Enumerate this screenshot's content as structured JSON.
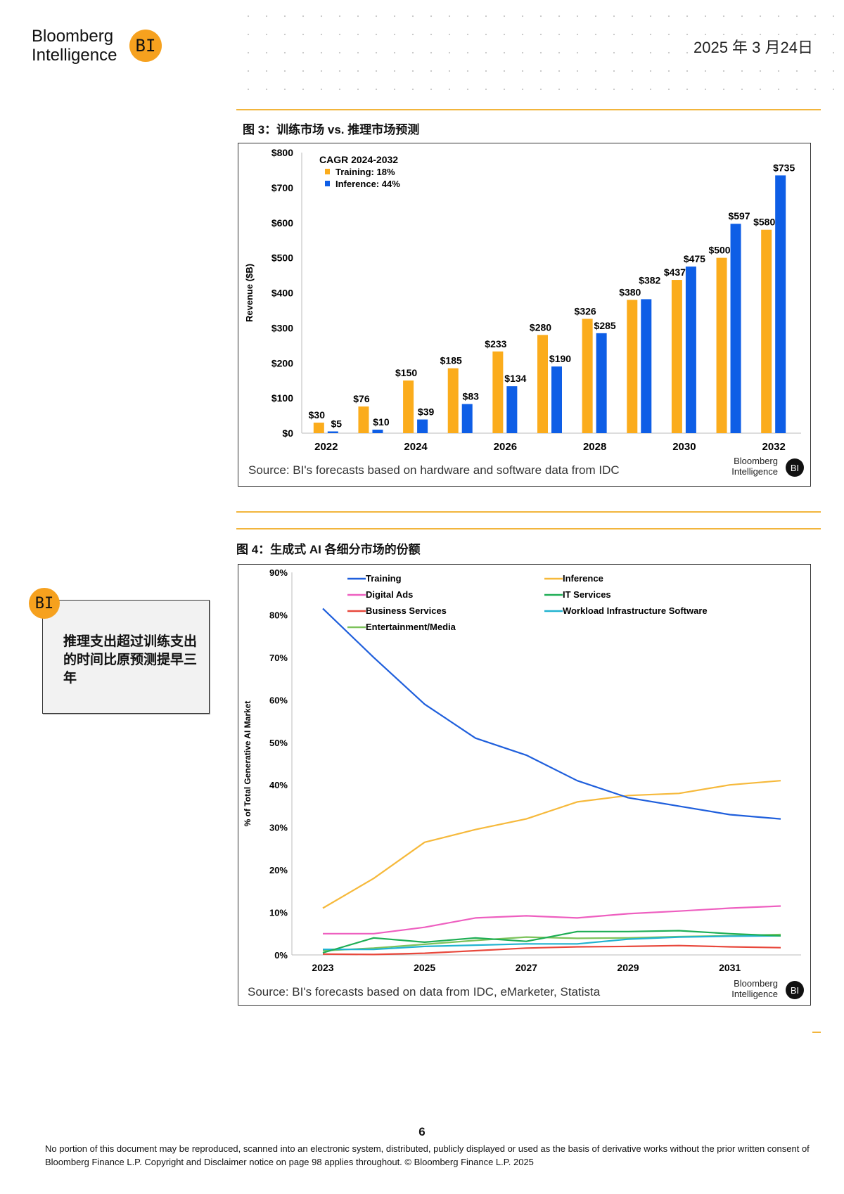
{
  "header": {
    "logo_line1": "Bloomberg",
    "logo_line2": "Intelligence",
    "logo_badge": "BI",
    "date": "2025 年 3 月24日"
  },
  "colors": {
    "accent": "#f6a11e",
    "rule": "#f2b53c",
    "training_bar": "#fbac1c",
    "inference_bar": "#0e5ee6"
  },
  "figure3": {
    "title": "图 3：训练市场 vs. 推理市场预测",
    "source": "Source: BI's forecasts based on hardware and software data from IDC",
    "brand_line1": "Bloomberg",
    "brand_line2": "Intelligence",
    "brand_badge": "BI"
  },
  "figure4": {
    "title": "图 4：生成式 AI 各细分市场的份额",
    "source": "Source: BI's forecasts based on data from IDC, eMarketer, Statista",
    "brand_line1": "Bloomberg",
    "brand_line2": "Intelligence",
    "brand_badge": "BI"
  },
  "callout": {
    "badge": "BI",
    "text": "推理支出超过训练支出的时间比原预测提早三年"
  },
  "footer": {
    "page_number": "6",
    "disclaimer": "No portion of this document may be reproduced, scanned into an electronic system, distributed, publicly displayed or used as the basis of derivative works without the prior written consent of Bloomberg Finance L.P. Copyright and Disclaimer notice on page 98 applies throughout. © Bloomberg Finance L.P. 2025"
  },
  "chart_data": [
    {
      "type": "bar",
      "ylabel": "Revenue ($B)",
      "ylim": [
        0,
        800
      ],
      "yticks": [
        "$0",
        "$100",
        "$200",
        "$300",
        "$400",
        "$500",
        "$600",
        "$700",
        "$800"
      ],
      "categories": [
        "2022",
        "2023",
        "2024",
        "2025",
        "2026",
        "2027",
        "2028",
        "2029",
        "2030",
        "2031",
        "2032"
      ],
      "xtick_labels": [
        "2022",
        "2024",
        "2026",
        "2028",
        "2030",
        "2032"
      ],
      "legend_title": "CAGR 2024-2032",
      "legend_placement": "top-left",
      "series": [
        {
          "name": "Training: 18%",
          "color": "#fbac1c",
          "values": [
            30,
            76,
            150,
            185,
            233,
            280,
            326,
            380,
            437,
            500,
            580
          ]
        },
        {
          "name": "Inference: 44%",
          "color": "#0e5ee6",
          "values": [
            5,
            10,
            39,
            83,
            134,
            190,
            285,
            382,
            475,
            597,
            735
          ]
        }
      ]
    },
    {
      "type": "line",
      "ylabel": "% of Total Generative AI Market",
      "ylim": [
        0,
        90
      ],
      "yticks": [
        "0%",
        "10%",
        "20%",
        "30%",
        "40%",
        "50%",
        "60%",
        "70%",
        "80%",
        "90%"
      ],
      "x": [
        2023,
        2024,
        2025,
        2026,
        2027,
        2028,
        2029,
        2030,
        2031,
        2032
      ],
      "xtick_labels": [
        "2023",
        "2025",
        "2027",
        "2029",
        "2031"
      ],
      "legend_placement": "top",
      "series": [
        {
          "name": "Training",
          "color": "#1f5fdc",
          "values": [
            81.5,
            70,
            59,
            51,
            47,
            41,
            37,
            35,
            33,
            32
          ]
        },
        {
          "name": "Inference",
          "color": "#f6b93b",
          "values": [
            11,
            18,
            26.5,
            29.5,
            32,
            36,
            37.5,
            38,
            40,
            41
          ]
        },
        {
          "name": "Digital Ads",
          "color": "#ee5fc0",
          "values": [
            5,
            5,
            6.5,
            8.7,
            9.2,
            8.7,
            9.7,
            10.3,
            11,
            11.5
          ]
        },
        {
          "name": "IT Services",
          "color": "#1fae55",
          "values": [
            0.5,
            4,
            3,
            4,
            3.2,
            5.5,
            5.5,
            5.7,
            5,
            4.5
          ]
        },
        {
          "name": "Business Services",
          "color": "#e8483c",
          "values": [
            0.2,
            0.1,
            0.4,
            1,
            1.6,
            1.9,
            2,
            2.2,
            1.9,
            1.7
          ]
        },
        {
          "name": "Workload Infrastructure Software",
          "color": "#21b3d0",
          "values": [
            1.3,
            1.3,
            2,
            2.3,
            2.6,
            2.6,
            3.7,
            4.2,
            4.4,
            4.5
          ]
        },
        {
          "name": "Entertainment/Media",
          "color": "#7cc25a",
          "values": [
            1,
            1.6,
            2.5,
            3.4,
            4.2,
            3.9,
            4,
            4.3,
            4.5,
            4.8
          ]
        }
      ]
    }
  ]
}
